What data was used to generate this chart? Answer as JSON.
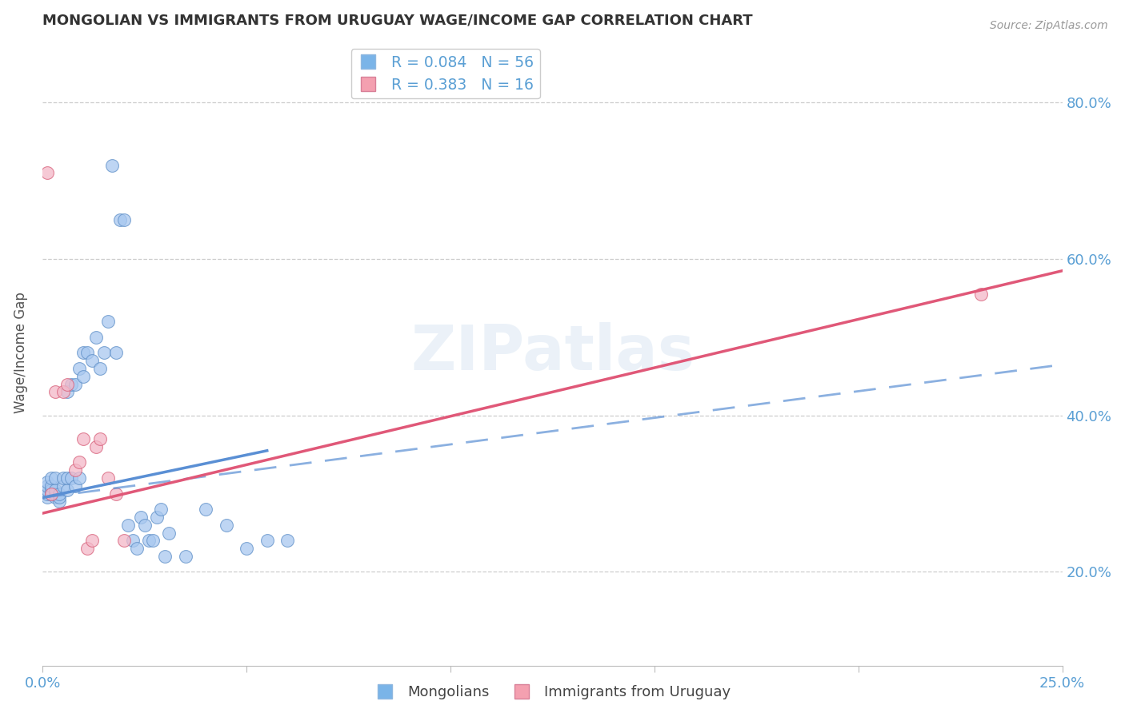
{
  "title": "MONGOLIAN VS IMMIGRANTS FROM URUGUAY WAGE/INCOME GAP CORRELATION CHART",
  "source": "Source: ZipAtlas.com",
  "ylabel": "Wage/Income Gap",
  "xlim": [
    0.0,
    0.25
  ],
  "ylim": [
    0.08,
    0.88
  ],
  "yticks": [
    0.2,
    0.4,
    0.6,
    0.8
  ],
  "ytick_labels": [
    "20.0%",
    "40.0%",
    "60.0%",
    "80.0%"
  ],
  "xticks": [
    0.0,
    0.05,
    0.1,
    0.15,
    0.2,
    0.25
  ],
  "legend_r_entries": [
    {
      "r": "0.084",
      "n": "56",
      "color": "#7ab4e8"
    },
    {
      "r": "0.383",
      "n": "16",
      "color": "#f4a0b0"
    }
  ],
  "blue_line": {
    "x0": 0.0,
    "x1": 0.055,
    "y0": 0.295,
    "y1": 0.355
  },
  "blue_dash_line": {
    "x0": 0.0,
    "x1": 0.25,
    "y0": 0.295,
    "y1": 0.465
  },
  "pink_line": {
    "x0": 0.0,
    "x1": 0.25,
    "y0": 0.275,
    "y1": 0.585
  },
  "dot_color_blue": "#a8c8f0",
  "dot_color_pink": "#f4b8c8",
  "dot_edge_blue": "#6090c8",
  "dot_edge_pink": "#d8607a",
  "line_color_blue": "#5a8fd4",
  "line_color_pink": "#e05878",
  "watermark": "ZIPatlas",
  "background_color": "#ffffff",
  "grid_color": "#c8c8c8",
  "axis_color": "#5a9fd4",
  "title_color": "#333333",
  "title_fontsize": 13,
  "mongolians_x": [
    0.001,
    0.001,
    0.001,
    0.001,
    0.001,
    0.002,
    0.002,
    0.002,
    0.002,
    0.003,
    0.003,
    0.003,
    0.003,
    0.004,
    0.004,
    0.004,
    0.005,
    0.005,
    0.006,
    0.006,
    0.006,
    0.007,
    0.007,
    0.008,
    0.008,
    0.009,
    0.009,
    0.01,
    0.01,
    0.011,
    0.012,
    0.013,
    0.014,
    0.015,
    0.016,
    0.017,
    0.018,
    0.019,
    0.02,
    0.021,
    0.022,
    0.023,
    0.024,
    0.025,
    0.026,
    0.027,
    0.028,
    0.029,
    0.03,
    0.031,
    0.035,
    0.04,
    0.045,
    0.05,
    0.055,
    0.06
  ],
  "mongolians_y": [
    0.295,
    0.3,
    0.305,
    0.31,
    0.315,
    0.3,
    0.305,
    0.31,
    0.32,
    0.295,
    0.3,
    0.305,
    0.32,
    0.29,
    0.295,
    0.3,
    0.31,
    0.32,
    0.305,
    0.32,
    0.43,
    0.32,
    0.44,
    0.31,
    0.44,
    0.32,
    0.46,
    0.45,
    0.48,
    0.48,
    0.47,
    0.5,
    0.46,
    0.48,
    0.52,
    0.72,
    0.48,
    0.65,
    0.65,
    0.26,
    0.24,
    0.23,
    0.27,
    0.26,
    0.24,
    0.24,
    0.27,
    0.28,
    0.22,
    0.25,
    0.22,
    0.28,
    0.26,
    0.23,
    0.24,
    0.24
  ],
  "uruguayans_x": [
    0.001,
    0.002,
    0.003,
    0.005,
    0.006,
    0.008,
    0.009,
    0.01,
    0.011,
    0.012,
    0.013,
    0.014,
    0.016,
    0.018,
    0.02,
    0.23
  ],
  "uruguayans_y": [
    0.71,
    0.3,
    0.43,
    0.43,
    0.44,
    0.33,
    0.34,
    0.37,
    0.23,
    0.24,
    0.36,
    0.37,
    0.32,
    0.3,
    0.24,
    0.555
  ]
}
